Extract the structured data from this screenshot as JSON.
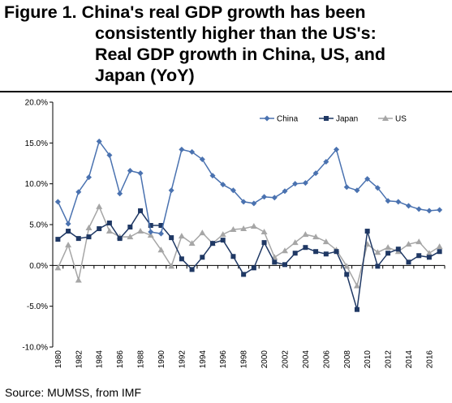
{
  "title": {
    "line1": "Figure 1. China's real GDP growth has been",
    "line2": "consistently higher than the US's:",
    "line3": "Real GDP growth in China, US, and",
    "line4": "Japan (YoY)"
  },
  "source": "Source: MUMSS, from IMF",
  "chart_data": {
    "type": "line",
    "title": "",
    "xlabel": "",
    "ylabel": "",
    "ylim": [
      -10,
      20
    ],
    "yticks": [
      "20.0%",
      "15.0%",
      "10.0%",
      "5.0%",
      "0.0%",
      "-5.0%",
      "-10.0%"
    ],
    "xtick_labels": [
      "1980",
      "1982",
      "1984",
      "1986",
      "1988",
      "1990",
      "1992",
      "1994",
      "1996",
      "1998",
      "2000",
      "2002",
      "2004",
      "2006",
      "2008",
      "2010",
      "2012",
      "2014",
      "2016"
    ],
    "x": [
      1980,
      1981,
      1982,
      1983,
      1984,
      1985,
      1986,
      1987,
      1988,
      1989,
      1990,
      1991,
      1992,
      1993,
      1994,
      1995,
      1996,
      1997,
      1998,
      1999,
      2000,
      2001,
      2002,
      2003,
      2004,
      2005,
      2006,
      2007,
      2008,
      2009,
      2010,
      2011,
      2012,
      2013,
      2014,
      2015,
      2016,
      2017
    ],
    "legend_position": "top-right",
    "grid": false,
    "series": [
      {
        "name": "China",
        "color": "#4a72b0",
        "marker": "diamond",
        "values": [
          7.8,
          5.1,
          9.0,
          10.8,
          15.2,
          13.5,
          8.8,
          11.6,
          11.3,
          4.1,
          3.9,
          9.2,
          14.2,
          13.9,
          13.0,
          11.0,
          9.9,
          9.2,
          7.8,
          7.6,
          8.4,
          8.3,
          9.1,
          10.0,
          10.1,
          11.3,
          12.7,
          14.2,
          9.6,
          9.2,
          10.6,
          9.5,
          7.9,
          7.8,
          7.3,
          6.9,
          6.7,
          6.8
        ]
      },
      {
        "name": "Japan",
        "color": "#1f3864",
        "marker": "square",
        "values": [
          3.2,
          4.2,
          3.3,
          3.5,
          4.5,
          5.2,
          3.3,
          4.7,
          6.7,
          4.9,
          4.9,
          3.4,
          0.8,
          -0.5,
          1.0,
          2.7,
          3.1,
          1.1,
          -1.1,
          -0.3,
          2.8,
          0.4,
          0.1,
          1.5,
          2.2,
          1.7,
          1.4,
          1.7,
          -1.1,
          -5.4,
          4.2,
          -0.1,
          1.5,
          2.0,
          0.4,
          1.2,
          1.0,
          1.7
        ]
      },
      {
        "name": "US",
        "color": "#a6a6a6",
        "marker": "triangle",
        "values": [
          -0.3,
          2.5,
          -1.8,
          4.6,
          7.2,
          4.2,
          3.5,
          3.5,
          4.2,
          3.7,
          1.9,
          -0.1,
          3.6,
          2.7,
          4.0,
          2.7,
          3.8,
          4.4,
          4.5,
          4.8,
          4.1,
          1.0,
          1.8,
          2.8,
          3.8,
          3.5,
          2.9,
          1.9,
          -0.1,
          -2.5,
          2.6,
          1.6,
          2.2,
          1.7,
          2.6,
          2.9,
          1.5,
          2.3
        ]
      }
    ]
  }
}
